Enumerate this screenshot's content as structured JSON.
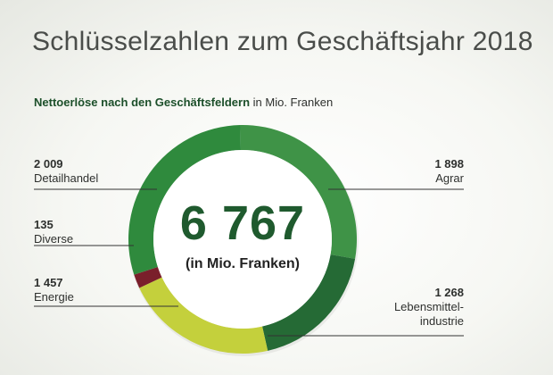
{
  "title": "Schlüsselzahlen zum Geschäftsjahr 2018",
  "subtitle_bold": "Nettoerlöse nach den Geschäftsfeldern",
  "subtitle_rest": "in Mio. Franken",
  "center": {
    "total": "6 767",
    "unit": "(in Mio. Franken)"
  },
  "labels": {
    "detailhandel": {
      "value": "2 009",
      "name": "Detailhandel"
    },
    "diverse": {
      "value": "135",
      "name": "Diverse"
    },
    "energie": {
      "value": "1 457",
      "name": "Energie"
    },
    "agrar": {
      "value": "1 898",
      "name": "Agrar"
    },
    "lebensmittel": {
      "value": "1 268",
      "name1": "Lebensmittel-",
      "name2": "industrie"
    }
  },
  "chart_data": {
    "type": "pie",
    "title": "Nettoerlöse nach den Geschäftsfeldern",
    "unit": "in Mio. Franken",
    "total": 6767,
    "slices": [
      {
        "name": "Agrar",
        "value": 1898,
        "color": "#3f9347"
      },
      {
        "name": "Lebensmittelindustrie",
        "value": 1268,
        "color": "#256a35"
      },
      {
        "name": "Energie",
        "value": 1457,
        "color": "#c4d03c"
      },
      {
        "name": "Diverse",
        "value": 135,
        "color": "#7a1f2b"
      },
      {
        "name": "Detailhandel",
        "value": 2009,
        "color": "#2f8a3d"
      }
    ]
  }
}
